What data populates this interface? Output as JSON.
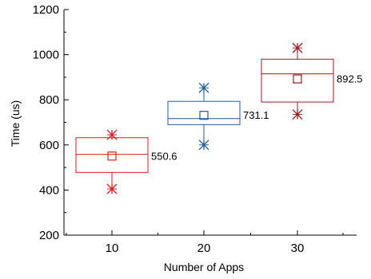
{
  "chart_data": {
    "type": "box",
    "xlabel": "Number of Apps",
    "ylabel": "Time (us)",
    "ylim": [
      200,
      1200
    ],
    "yticks": [
      200,
      400,
      600,
      800,
      1000,
      1200
    ],
    "categories": [
      "10",
      "20",
      "30"
    ],
    "boxes": [
      {
        "category": "10",
        "min": 405,
        "q1": 478,
        "median": 558,
        "q3": 632,
        "max": 645,
        "mean": 550.6,
        "mean_label": "550.6",
        "color": "#e0191f"
      },
      {
        "category": "20",
        "min": 600,
        "q1": 690,
        "median": 717,
        "q3": 793,
        "max": 853,
        "mean": 731.1,
        "mean_label": "731.1",
        "color": "#1f5b99"
      },
      {
        "category": "30",
        "min": 735,
        "q1": 790,
        "median": 915,
        "q3": 980,
        "max": 1030,
        "mean": 892.5,
        "mean_label": "892.5",
        "color": "#9b1b1b"
      }
    ],
    "grid": false,
    "legend": "none"
  }
}
